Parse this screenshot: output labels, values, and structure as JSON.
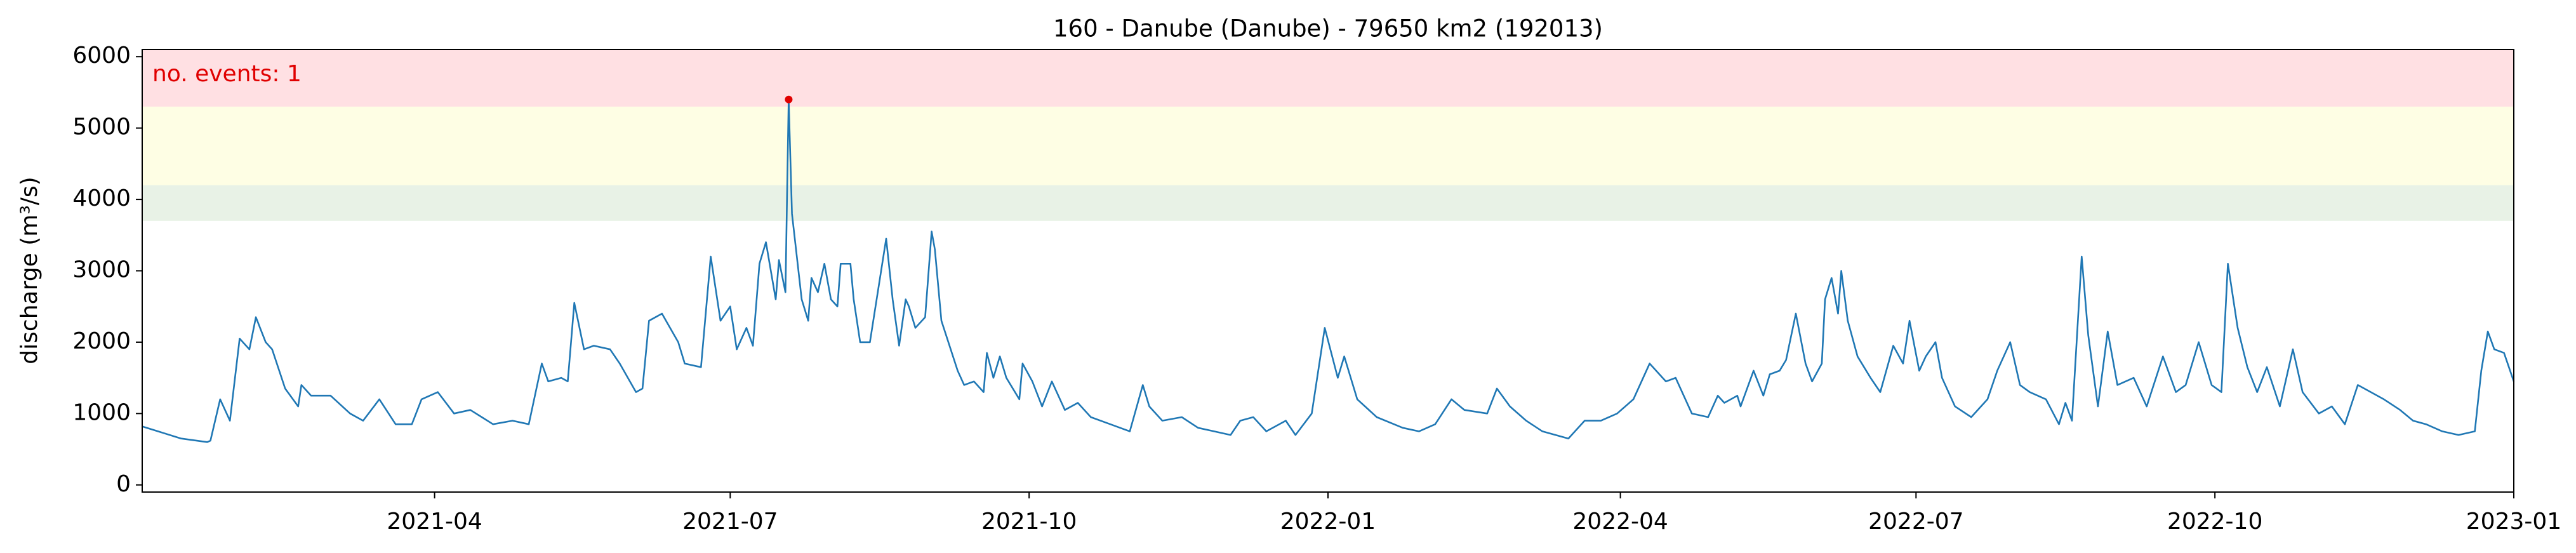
{
  "chart_data": {
    "type": "line",
    "title": "160 - Danube (Danube) - 79650 km2 (192013)",
    "y_label": "discharge (m³/s)",
    "annotation": "no. events: 1",
    "annotation_color": "#e00000",
    "threshold_bands": [
      {
        "from": 3700,
        "color": "#e8f2e6"
      },
      {
        "from": 4200,
        "color": "#fefee4"
      },
      {
        "from": 5300,
        "color": "#ffe0e3"
      }
    ],
    "xlim": [
      0,
      730
    ],
    "xticks": [
      {
        "value": 90,
        "label": "2021-04"
      },
      {
        "value": 181,
        "label": "2021-07"
      },
      {
        "value": 273,
        "label": "2021-10"
      },
      {
        "value": 365,
        "label": "2022-01"
      },
      {
        "value": 455,
        "label": "2022-04"
      },
      {
        "value": 546,
        "label": "2022-07"
      },
      {
        "value": 638,
        "label": "2022-10"
      },
      {
        "value": 730,
        "label": "2023-01"
      }
    ],
    "ylim": [
      -100,
      6100
    ],
    "yticks": [
      0,
      1000,
      2000,
      3000,
      4000,
      5000,
      6000
    ],
    "series": [
      {
        "color": "#1f77b4",
        "x": [
          0,
          12,
          20,
          21,
          24,
          27,
          30,
          33,
          35,
          38,
          40,
          44,
          48,
          49,
          52,
          58,
          64,
          68,
          73,
          78,
          83,
          86,
          91,
          96,
          101,
          108,
          114,
          119,
          123,
          125,
          129,
          131,
          133,
          136,
          139,
          144,
          147,
          152,
          154,
          156,
          160,
          165,
          167,
          172,
          175,
          178,
          181,
          183,
          186,
          188,
          190,
          192,
          195,
          196,
          198,
          199,
          200,
          203,
          205,
          206,
          208,
          210,
          212,
          214,
          215,
          218,
          219,
          221,
          224,
          229,
          231,
          233,
          235,
          236,
          238,
          241,
          243,
          244,
          246,
          251,
          253,
          256,
          259,
          260,
          262,
          264,
          266,
          270,
          271,
          274,
          277,
          280,
          284,
          288,
          292,
          298,
          304,
          308,
          310,
          314,
          320,
          325,
          335,
          338,
          342,
          346,
          352,
          355,
          360,
          364,
          368,
          370,
          374,
          380,
          388,
          393,
          398,
          403,
          407,
          414,
          417,
          421,
          426,
          431,
          439,
          444,
          449,
          454,
          459,
          464,
          469,
          472,
          477,
          482,
          485,
          487,
          491,
          492,
          496,
          499,
          501,
          504,
          506,
          509,
          512,
          514,
          517,
          518,
          520,
          522,
          523,
          525,
          528,
          532,
          535,
          539,
          542,
          544,
          547,
          549,
          552,
          554,
          558,
          563,
          568,
          571,
          575,
          578,
          581,
          586,
          590,
          592,
          594,
          597,
          599,
          602,
          605,
          608,
          613,
          617,
          622,
          626,
          629,
          633,
          637,
          640,
          642,
          645,
          648,
          651,
          654,
          658,
          662,
          665,
          670,
          674,
          678,
          682,
          686,
          690,
          695,
          699,
          703,
          708,
          713,
          718,
          720,
          722,
          724,
          727,
          730
        ],
        "values": [
          820,
          650,
          600,
          620,
          1200,
          900,
          2050,
          1900,
          2350,
          2000,
          1900,
          1350,
          1100,
          1400,
          1250,
          1250,
          1000,
          900,
          1200,
          850,
          850,
          1200,
          1300,
          1000,
          1050,
          850,
          900,
          850,
          1700,
          1450,
          1500,
          1450,
          2550,
          1900,
          1950,
          1900,
          1700,
          1300,
          1350,
          2300,
          2400,
          2000,
          1700,
          1650,
          3200,
          2300,
          2500,
          1900,
          2200,
          1950,
          3100,
          3400,
          2600,
          3150,
          2700,
          5400,
          3800,
          2600,
          2300,
          2900,
          2700,
          3100,
          2600,
          2500,
          3100,
          3100,
          2600,
          2000,
          2000,
          3450,
          2600,
          1950,
          2600,
          2500,
          2200,
          2350,
          3550,
          3300,
          2300,
          1600,
          1400,
          1450,
          1300,
          1850,
          1500,
          1800,
          1500,
          1200,
          1700,
          1450,
          1100,
          1450,
          1050,
          1150,
          950,
          850,
          750,
          1400,
          1100,
          900,
          950,
          800,
          700,
          900,
          950,
          750,
          900,
          700,
          1000,
          2200,
          1500,
          1800,
          1200,
          950,
          800,
          750,
          850,
          1200,
          1050,
          1000,
          1350,
          1100,
          900,
          750,
          650,
          900,
          900,
          1000,
          1200,
          1700,
          1450,
          1500,
          1000,
          950,
          1250,
          1150,
          1250,
          1100,
          1600,
          1250,
          1550,
          1600,
          1750,
          2400,
          1700,
          1450,
          1700,
          2600,
          2900,
          2400,
          3000,
          2300,
          1800,
          1500,
          1300,
          1950,
          1700,
          2300,
          1600,
          1800,
          2000,
          1500,
          1100,
          950,
          1200,
          1600,
          2000,
          1400,
          1300,
          1200,
          850,
          1150,
          900,
          3200,
          2100,
          1100,
          2150,
          1400,
          1500,
          1100,
          1800,
          1300,
          1400,
          2000,
          1400,
          1300,
          3100,
          2200,
          1650,
          1300,
          1650,
          1100,
          1900,
          1300,
          1000,
          1100,
          850,
          1400,
          1300,
          1200,
          1050,
          900,
          850,
          750,
          700,
          750,
          1600,
          2150,
          1900,
          1850,
          1450
        ]
      }
    ],
    "events": {
      "color": "#e00000",
      "x": [
        199
      ],
      "values": [
        5400
      ]
    }
  }
}
